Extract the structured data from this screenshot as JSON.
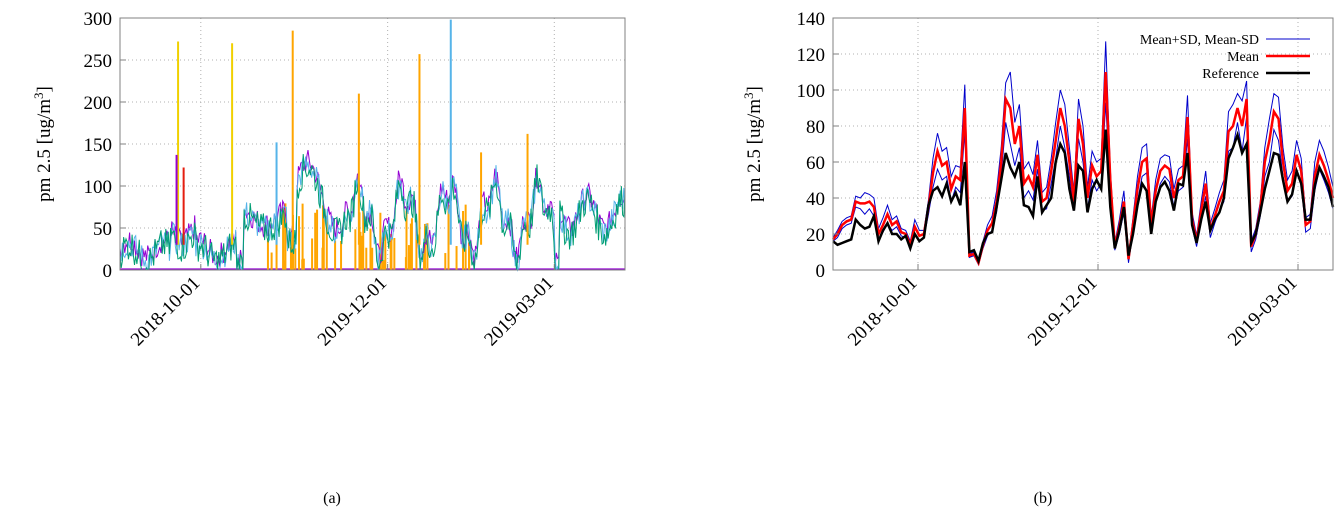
{
  "caption_a": "(a)",
  "caption_b": "(b)",
  "colors": {
    "purple": "#9400d3",
    "red": "#e51e10",
    "gold": "#f0d000",
    "skyblue": "#56b4e9",
    "orange": "#ffa500",
    "teal": "#009e73",
    "blue": "#0000cc",
    "meanred": "#ff0000",
    "black": "#000000"
  },
  "chart_data": [
    {
      "type": "line",
      "ylabel": "pm 2.5 [ug/m3]",
      "ylim": [
        0,
        300
      ],
      "yticks": [
        0,
        50,
        100,
        150,
        200,
        250,
        300
      ],
      "xtick_labels": [
        "2018-10-01",
        "2019-12-01",
        "2019-03-01"
      ],
      "grid": true,
      "series_note": "multiple overlapping sensor series",
      "spikes": [
        {
          "color": "gold",
          "x": 0.115,
          "y": 272
        },
        {
          "color": "gold",
          "x": 0.222,
          "y": 270
        },
        {
          "color": "orange",
          "x": 0.342,
          "y": 285
        },
        {
          "color": "orange",
          "x": 0.593,
          "y": 257
        },
        {
          "color": "orange",
          "x": 0.473,
          "y": 210
        },
        {
          "color": "skyblue",
          "x": 0.655,
          "y": 298
        },
        {
          "color": "purple",
          "x": 0.112,
          "y": 137
        },
        {
          "color": "red",
          "x": 0.126,
          "y": 122
        },
        {
          "color": "skyblue",
          "x": 0.31,
          "y": 152
        },
        {
          "color": "orange",
          "x": 0.715,
          "y": 140
        },
        {
          "color": "orange",
          "x": 0.807,
          "y": 162
        }
      ]
    },
    {
      "type": "line",
      "ylabel": "pm 2.5 [ug/m3]",
      "ylim": [
        0,
        140
      ],
      "yticks": [
        0,
        20,
        40,
        60,
        80,
        100,
        120,
        140
      ],
      "xtick_labels": [
        "2018-10-01",
        "2019-12-01",
        "2019-03-01"
      ],
      "grid": true,
      "legend_position": "top-right",
      "series": [
        {
          "name": "Mean+SD, Mean-SD",
          "color": "blue"
        },
        {
          "name": "Mean",
          "color": "meanred"
        },
        {
          "name": "Reference",
          "color": "black"
        }
      ],
      "reference": [
        16,
        14,
        15,
        16,
        17,
        28,
        25,
        23,
        24,
        30,
        16,
        22,
        26,
        20,
        20,
        17,
        19,
        12,
        20,
        16,
        18,
        36,
        44,
        46,
        41,
        48,
        38,
        43,
        36,
        60,
        10,
        11,
        5,
        15,
        20,
        21,
        35,
        50,
        65,
        57,
        52,
        60,
        36,
        35,
        30,
        52,
        32,
        36,
        40,
        60,
        70,
        65,
        45,
        33,
        58,
        55,
        32,
        45,
        50,
        45,
        78,
        35,
        12,
        22,
        35,
        8,
        20,
        36,
        48,
        44,
        20,
        38,
        46,
        49,
        44,
        33,
        48,
        47,
        65,
        25,
        15,
        28,
        38,
        22,
        28,
        32,
        40,
        62,
        68,
        75,
        65,
        70,
        15,
        20,
        32,
        45,
        55,
        65,
        64,
        50,
        38,
        42,
        55,
        48,
        28,
        28,
        47,
        57,
        52,
        46,
        35
      ],
      "mean": [
        17,
        20,
        25,
        27,
        28,
        38,
        37,
        37,
        38,
        35,
        20,
        25,
        31,
        25,
        27,
        21,
        20,
        14,
        24,
        19,
        20,
        35,
        54,
        66,
        58,
        60,
        45,
        52,
        50,
        90,
        8,
        9,
        4,
        14,
        22,
        26,
        38,
        60,
        95,
        90,
        70,
        80,
        48,
        52,
        46,
        64,
        38,
        40,
        55,
        72,
        90,
        80,
        60,
        38,
        84,
        70,
        40,
        58,
        52,
        55,
        110,
        50,
        13,
        24,
        38,
        6,
        25,
        45,
        60,
        62,
        25,
        44,
        55,
        58,
        56,
        40,
        50,
        52,
        85,
        28,
        16,
        33,
        48,
        22,
        30,
        38,
        44,
        77,
        80,
        90,
        80,
        95,
        13,
        20,
        34,
        60,
        72,
        88,
        84,
        60,
        44,
        48,
        64,
        55,
        25,
        27,
        52,
        64,
        58,
        50,
        40
      ],
      "sd_upper": [
        18,
        22,
        27,
        29,
        30,
        41,
        40,
        43,
        42,
        40,
        23,
        29,
        36,
        28,
        30,
        23,
        22,
        16,
        28,
        22,
        22,
        39,
        62,
        76,
        66,
        68,
        52,
        58,
        57,
        103,
        9,
        10,
        5,
        16,
        25,
        30,
        44,
        68,
        104,
        110,
        82,
        92,
        56,
        60,
        53,
        72,
        43,
        46,
        62,
        82,
        100,
        92,
        68,
        43,
        95,
        80,
        46,
        66,
        60,
        62,
        127,
        56,
        15,
        28,
        44,
        8,
        29,
        52,
        68,
        70,
        29,
        50,
        62,
        64,
        63,
        45,
        56,
        58,
        97,
        32,
        19,
        38,
        55,
        26,
        34,
        43,
        50,
        88,
        92,
        98,
        94,
        105,
        16,
        23,
        38,
        68,
        84,
        98,
        96,
        68,
        50,
        55,
        72,
        62,
        29,
        31,
        60,
        72,
        66,
        57,
        46
      ],
      "sd_lower": [
        16,
        18,
        23,
        25,
        26,
        35,
        34,
        31,
        34,
        30,
        17,
        21,
        26,
        22,
        24,
        19,
        18,
        12,
        20,
        16,
        18,
        31,
        46,
        56,
        50,
        52,
        38,
        46,
        43,
        77,
        7,
        8,
        3,
        12,
        19,
        22,
        32,
        52,
        82,
        70,
        58,
        68,
        40,
        44,
        39,
        56,
        33,
        34,
        48,
        62,
        80,
        68,
        52,
        33,
        73,
        60,
        34,
        50,
        44,
        48,
        93,
        44,
        11,
        20,
        32,
        4,
        21,
        38,
        52,
        54,
        21,
        38,
        48,
        52,
        49,
        35,
        44,
        46,
        73,
        24,
        13,
        28,
        41,
        18,
        26,
        33,
        38,
        66,
        68,
        82,
        66,
        85,
        10,
        17,
        30,
        52,
        60,
        78,
        72,
        52,
        38,
        41,
        56,
        48,
        21,
        23,
        44,
        56,
        50,
        43,
        34
      ]
    }
  ]
}
